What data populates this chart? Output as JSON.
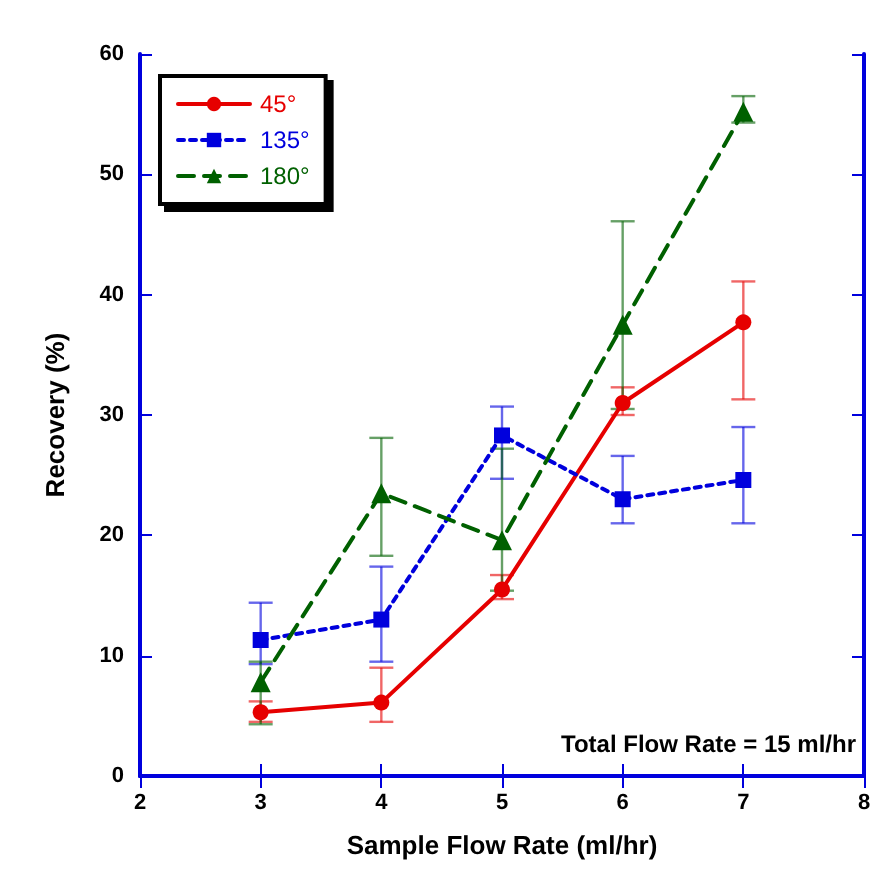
{
  "chart_data": {
    "type": "line",
    "xlabel": "Sample Flow Rate (ml/hr)",
    "ylabel": "Recovery (%)",
    "x": [
      3,
      4,
      5,
      6,
      7
    ],
    "series": [
      {
        "name": "45°",
        "color": "#e60000",
        "marker": "circle",
        "line_style": "solid",
        "values": [
          5.3,
          6.1,
          15.5,
          31,
          37.7
        ],
        "errors": [
          [
            4.5,
            6.2
          ],
          [
            4.5,
            9
          ],
          [
            14.7,
            16.7
          ],
          [
            30,
            32.3
          ],
          [
            31.3,
            41.1
          ]
        ]
      },
      {
        "name": "135°",
        "color": "#0000dd",
        "marker": "square",
        "line_style": "dotted",
        "values": [
          11.3,
          13,
          28.3,
          23,
          24.6
        ],
        "errors": [
          [
            9.3,
            14.4
          ],
          [
            9.5,
            17.4
          ],
          [
            24.7,
            30.7
          ],
          [
            21,
            26.6
          ],
          [
            21,
            29
          ]
        ]
      },
      {
        "name": "180°",
        "color": "#006000",
        "marker": "triangle",
        "line_style": "dashed",
        "values": [
          7.8,
          23.5,
          19.6,
          37.5,
          55.2
        ],
        "errors": [
          [
            4.3,
            9.5
          ],
          [
            18.3,
            28.1
          ],
          [
            15.4,
            27.2
          ],
          [
            30.5,
            46.1
          ],
          [
            54.3,
            56.5
          ]
        ]
      }
    ],
    "xlim": [
      2,
      8
    ],
    "xticks": [
      2,
      3,
      4,
      5,
      6,
      7,
      8
    ],
    "ylim": [
      0,
      60
    ],
    "yticks": [
      0,
      10,
      20,
      30,
      40,
      50,
      60
    ],
    "grid": false,
    "legend": "top left",
    "annotations": [
      "Total Flow Rate = 15 ml/hr"
    ]
  }
}
